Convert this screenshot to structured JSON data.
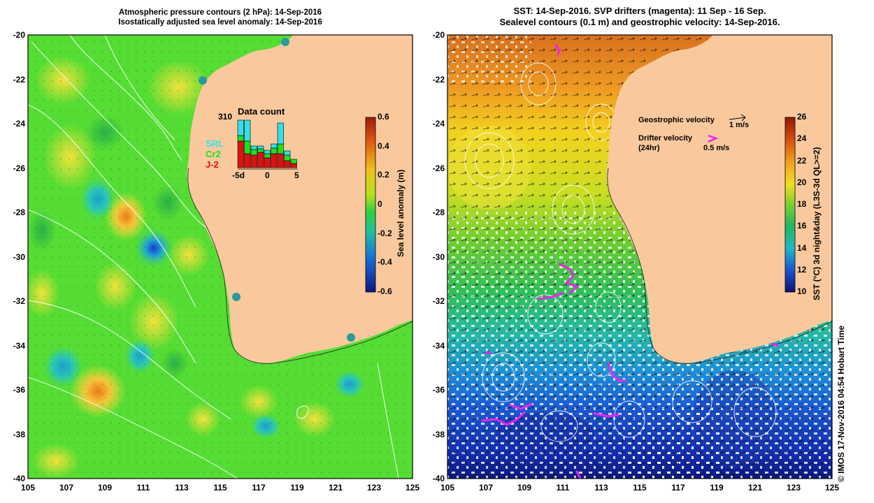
{
  "left_panel": {
    "title_line1": "Atmospheric pressure contours (2 hPa): 14-Sep-2016",
    "title_line2": "Isostatically adjusted sea level anomaly: 14-Sep-2016",
    "inset": {
      "max_label": "310",
      "title": "Data count",
      "legend": [
        {
          "label": "SRL",
          "color": "#33e0e8"
        },
        {
          "label": "Cr2",
          "color": "#22dd22"
        },
        {
          "label": "J-2",
          "color": "#dd1111"
        }
      ],
      "x_ticks": [
        "-5d",
        "0",
        "5"
      ]
    },
    "colorbar": {
      "title": "Sea level anomaly (m)",
      "ticks": [
        "0.6",
        "0.4",
        "0.2",
        "0",
        "-0.2",
        "-0.4",
        "-0.6"
      ]
    }
  },
  "right_panel": {
    "title_line1": "SST: 14-Sep-2016. SVP drifters (magenta): 11 Sep - 16 Sep.",
    "title_line2": "Sealevel contours (0.1 m) and geostrophic velocity: 14-Sep-2016.",
    "geostrophic_label": "Geostrophic velocity",
    "geostrophic_speed": "1 m/s",
    "drifter_label": "Drifter velocity",
    "drifter_sub": "(24hr)",
    "drifter_speed": "0.5 m/s",
    "colorbar": {
      "title": "SST (°C) 3d night&day (L3S-3d QL>=2)",
      "ticks": [
        "26",
        "24",
        "22",
        "20",
        "18",
        "16",
        "14",
        "12",
        "10"
      ]
    }
  },
  "axes": {
    "y_ticks": [
      "-20",
      "-22",
      "-24",
      "-26",
      "-28",
      "-30",
      "-32",
      "-34",
      "-36",
      "-38",
      "-40"
    ],
    "x_ticks": [
      "105",
      "107",
      "109",
      "111",
      "113",
      "115",
      "117",
      "119",
      "121",
      "123",
      "125"
    ]
  },
  "credit": "© IMOS 17-Nov-2016 04:54 Hobart Time",
  "colors": {
    "land": "#f9c99d",
    "ocean_green": "#55dd33",
    "ocean_blue": "#1a5fd6",
    "drifter": "#ee22ee"
  }
}
